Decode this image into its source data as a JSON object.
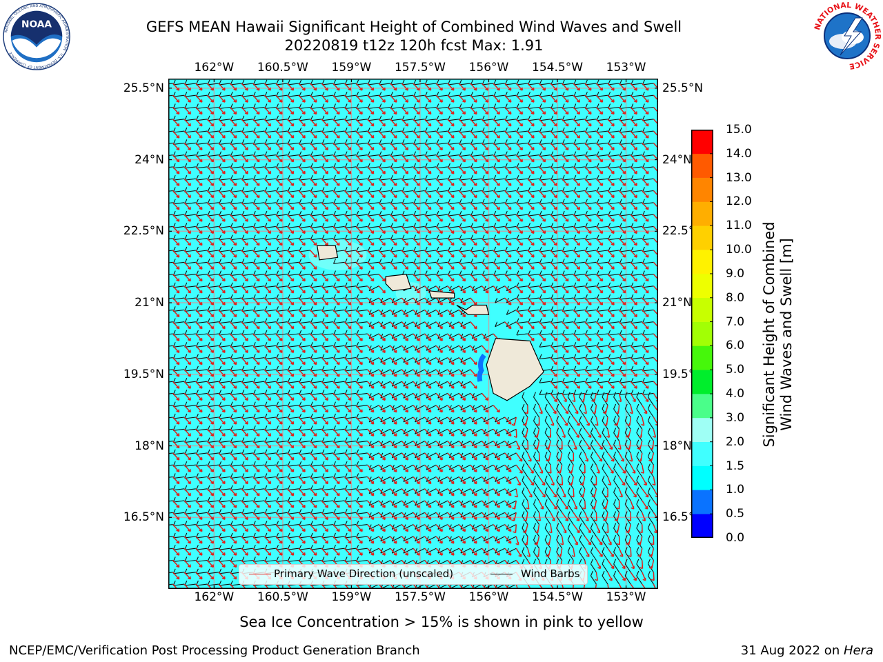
{
  "header": {
    "title_line1": "GEFS MEAN Hawaii Significant Height of Combined Wind Waves and Swell",
    "title_line2": "20220819 t12z 120h fcst   Max: 1.91"
  },
  "logos": {
    "noaa": {
      "icon": "noaa-logo",
      "text": "NOAA",
      "ring_text": "NATIONAL OCEANIC AND ATMOSPHERIC ADMINISTRATION · U.S. DEPARTMENT OF COMMERCE"
    },
    "nws": {
      "icon": "nws-logo",
      "ring_text": "NATIONAL WEATHER SERVICE"
    }
  },
  "map": {
    "region": "Hawaii",
    "lon_ticks": [
      "162°W",
      "160.5°W",
      "159°W",
      "157.5°W",
      "156°W",
      "154.5°W",
      "153°W"
    ],
    "lon_values": [
      -162,
      -160.5,
      -159,
      -157.5,
      -156,
      -154.5,
      -153
    ],
    "lat_ticks": [
      "25.5°N",
      "24°N",
      "22.5°N",
      "21°N",
      "19.5°N",
      "18°N",
      "16.5°N"
    ],
    "lat_values": [
      25.5,
      24,
      22.5,
      21,
      19.5,
      18,
      16.5
    ],
    "lon_range": [
      -163,
      -152.3
    ],
    "lat_range": [
      15.0,
      25.7
    ],
    "ocean_color": "#40ffff",
    "land_color": "#efe9d9",
    "wave_arrow_color": "#e0201a",
    "barb_color": "#000000",
    "grid": true
  },
  "legend": {
    "position": "lower-center",
    "items": [
      {
        "label": "Primary Wave Direction (unscaled)",
        "color": "#e8231d"
      },
      {
        "label": "Wind Barbs",
        "color": "#000000"
      }
    ]
  },
  "colorbar": {
    "label_line1": "Significant Height of Combined",
    "label_line2": "Wind Waves and Swell [m]",
    "ticks": [
      "0.0",
      "0.5",
      "1.0",
      "1.5",
      "2.0",
      "3.0",
      "4.0",
      "5.0",
      "6.0",
      "7.0",
      "8.0",
      "9.0",
      "10.0",
      "11.0",
      "12.0",
      "13.0",
      "14.0",
      "15.0"
    ],
    "colors": [
      "#0000ff",
      "#0a73ff",
      "#00ffff",
      "#40ffff",
      "#9ffff5",
      "#4afe8a",
      "#00ee2c",
      "#46f70b",
      "#a2ff05",
      "#c8ff00",
      "#eeff00",
      "#fff200",
      "#ffd000",
      "#ffae00",
      "#ff8500",
      "#ff5a00",
      "#ff2e00",
      "#ff0000"
    ]
  },
  "note": "Sea Ice Concentration > 15% is shown in pink to yellow",
  "footer": {
    "left": "NCEP/EMC/Verification Post Processing Product Generation Branch",
    "right_date": "31 Aug 2022 on ",
    "right_host": "Hera"
  }
}
